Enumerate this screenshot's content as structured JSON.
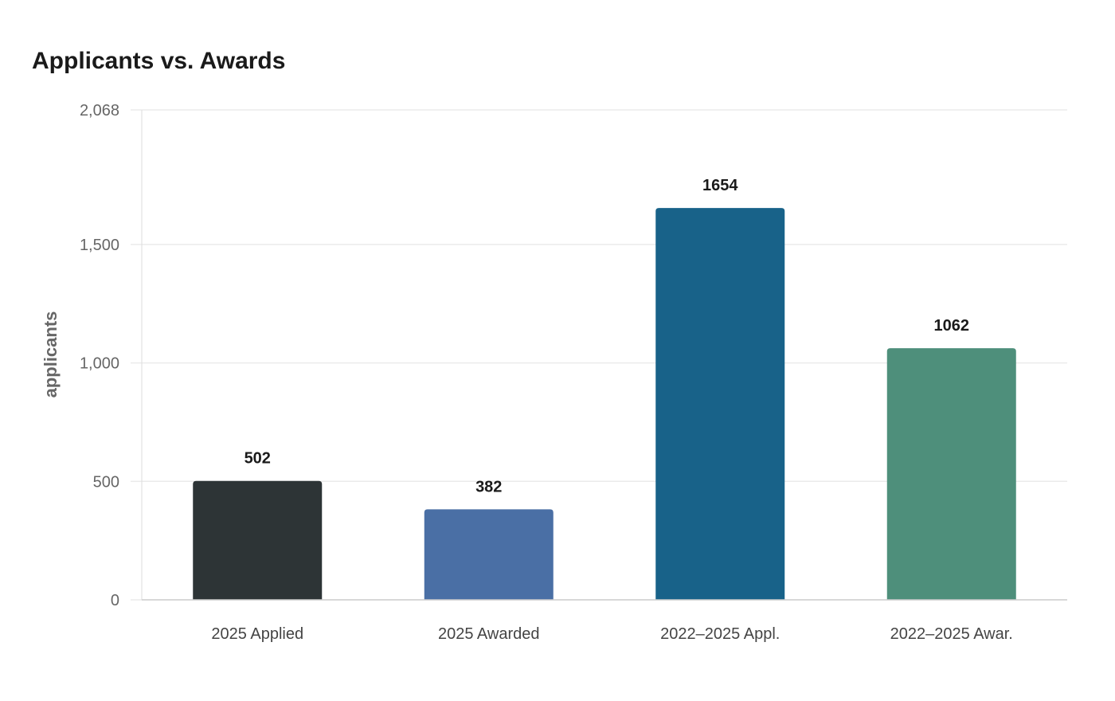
{
  "chart_data": {
    "type": "bar",
    "title": "Applicants vs. Awards",
    "xlabel": "",
    "ylabel": "applicants",
    "ylim": [
      0,
      2068
    ],
    "yticks": [
      0,
      500,
      1000,
      1500,
      2068
    ],
    "ytick_labels": [
      "0",
      "500",
      "1,000",
      "1,500",
      "2,068"
    ],
    "grid": true,
    "categories": [
      "2025 Applied",
      "2025 Awarded",
      "2022–2025 Appl.",
      "2022–2025 Awar."
    ],
    "values": [
      502,
      382,
      1654,
      1062
    ],
    "data_labels": [
      "502",
      "382",
      "1654",
      "1062"
    ],
    "colors": [
      "#2d3436",
      "#4a6fa5",
      "#186289",
      "#4e8f7b"
    ]
  }
}
